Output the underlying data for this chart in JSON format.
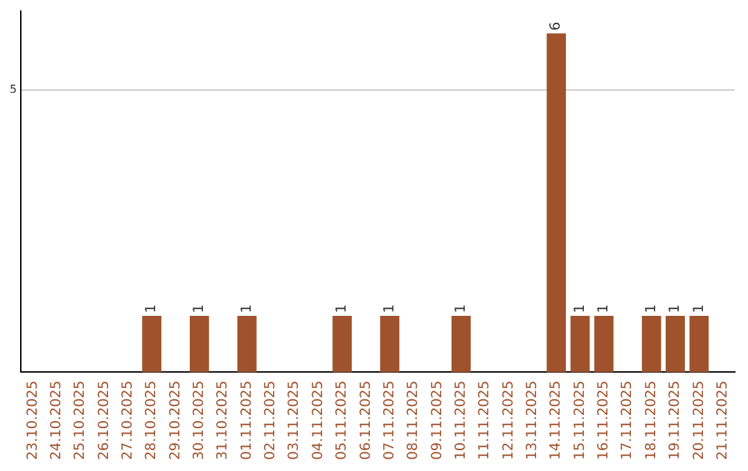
{
  "chart_data": {
    "type": "bar",
    "categories": [
      "23.10.2025",
      "24.10.2025",
      "25.10.2025",
      "26.10.2025",
      "27.10.2025",
      "28.10.2025",
      "29.10.2025",
      "30.10.2025",
      "31.10.2025",
      "01.11.2025",
      "02.11.2025",
      "03.11.2025",
      "04.11.2025",
      "05.11.2025",
      "06.11.2025",
      "07.11.2025",
      "08.11.2025",
      "09.11.2025",
      "10.11.2025",
      "11.11.2025",
      "12.11.2025",
      "13.11.2025",
      "14.11.2025",
      "15.11.2025",
      "16.11.2025",
      "17.11.2025",
      "18.11.2025",
      "19.11.2025",
      "20.11.2025",
      "21.11.2025"
    ],
    "values": [
      0,
      0,
      0,
      0,
      0,
      1,
      0,
      1,
      0,
      1,
      0,
      0,
      0,
      1,
      0,
      1,
      0,
      0,
      1,
      0,
      0,
      0,
      6,
      1,
      1,
      0,
      1,
      1,
      1,
      0
    ],
    "value_labels": [
      null,
      null,
      null,
      null,
      null,
      "1",
      null,
      "1",
      null,
      "1",
      null,
      null,
      null,
      "1",
      null,
      "1",
      null,
      null,
      "1",
      null,
      null,
      null,
      "6",
      "1",
      "1",
      null,
      "1",
      "1",
      "1",
      null
    ],
    "color": "#a0522d",
    "ylim": [
      0,
      6.4
    ],
    "yticks": [
      5
    ],
    "grid": "y",
    "legend": false
  }
}
